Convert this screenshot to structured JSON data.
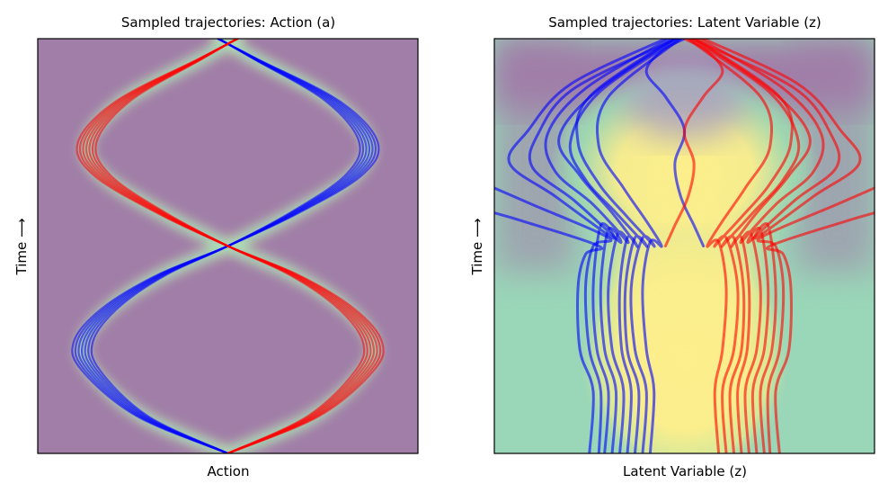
{
  "chart_data": [
    {
      "type": "line",
      "title": "Sampled trajectories: Action (a)",
      "xlabel": "Action",
      "ylabel": "Time ⟶",
      "xticks": [],
      "yticks": [],
      "xlim": [
        -1.0,
        1.0
      ],
      "ylim": [
        0.0,
        1.0
      ],
      "grid": false,
      "background": "density heatmap (mostly purple, bright only near trajectories)",
      "series": [
        {
          "color": "#0000ff",
          "x": [
            0.0,
            -0.45,
            -0.72,
            -0.76,
            -0.62,
            -0.35,
            0.0,
            0.35,
            0.66,
            0.74,
            0.55,
            0.15,
            -0.05
          ],
          "y": [
            0.0,
            0.09,
            0.2,
            0.27,
            0.35,
            0.43,
            0.5,
            0.58,
            0.67,
            0.75,
            0.85,
            0.95,
            1.0
          ]
        },
        {
          "color": "#ff0000",
          "x": [
            0.0,
            0.45,
            0.72,
            0.76,
            0.62,
            0.35,
            0.0,
            -0.35,
            -0.66,
            -0.74,
            -0.55,
            -0.15,
            0.05
          ],
          "y": [
            0.0,
            0.09,
            0.2,
            0.27,
            0.35,
            0.43,
            0.5,
            0.58,
            0.67,
            0.75,
            0.85,
            0.95,
            1.0
          ]
        }
      ]
    },
    {
      "type": "line",
      "title": "Sampled trajectories: Latent Variable (z)",
      "xlabel": "Latent Variable (z)",
      "ylabel": "Time ⟶",
      "xticks": [],
      "yticks": [],
      "xlim": [
        -1.0,
        1.0
      ],
      "ylim": [
        0.0,
        1.0
      ],
      "grid": false,
      "background": "density heatmap (yellow center band, green-teal sides, purple corners)",
      "series": [
        {
          "color": "#0000ff",
          "x": [
            -0.3,
            -0.28,
            -0.33,
            -0.34,
            -0.3,
            -0.25,
            -0.38,
            -0.55,
            -0.66,
            -0.47,
            -0.05
          ],
          "y": [
            0.0,
            0.15,
            0.25,
            0.4,
            0.52,
            0.5,
            0.58,
            0.67,
            0.76,
            0.87,
            1.0
          ]
        },
        {
          "color": "#0000ff",
          "x": [
            -0.34,
            -0.32,
            -0.38,
            -0.4,
            -0.35,
            -0.3,
            -0.48,
            -0.68,
            -0.72,
            -0.52,
            -0.08
          ],
          "y": [
            0.0,
            0.15,
            0.25,
            0.4,
            0.53,
            0.51,
            0.6,
            0.68,
            0.77,
            0.88,
            1.0
          ]
        },
        {
          "color": "#0000ff",
          "x": [
            -0.38,
            -0.36,
            -0.42,
            -0.44,
            -0.4,
            -0.34,
            -0.58,
            -0.8,
            -0.77,
            -0.58,
            -0.04
          ],
          "y": [
            0.0,
            0.15,
            0.25,
            0.4,
            0.54,
            0.51,
            0.61,
            0.69,
            0.77,
            0.88,
            1.0
          ]
        },
        {
          "color": "#0000ff",
          "x": [
            -0.42,
            -0.4,
            -0.46,
            -0.48,
            -0.44,
            -0.38,
            -0.68,
            -0.92,
            -0.82,
            -0.6,
            -0.1
          ],
          "y": [
            0.0,
            0.15,
            0.25,
            0.4,
            0.55,
            0.52,
            0.62,
            0.7,
            0.78,
            0.89,
            1.0
          ]
        },
        {
          "color": "#0000ff",
          "x": [
            -0.22,
            -0.2,
            -0.26,
            -0.28,
            -0.22,
            -0.16,
            -0.3,
            -0.45,
            -0.56,
            -0.5,
            -0.06
          ],
          "y": [
            0.0,
            0.15,
            0.25,
            0.4,
            0.52,
            0.5,
            0.57,
            0.65,
            0.75,
            0.86,
            1.0
          ]
        },
        {
          "color": "#0000ff",
          "x": [
            -0.26,
            -0.24,
            -0.3,
            -0.31,
            -0.26,
            -0.2,
            -0.36,
            -0.52,
            -0.6,
            -0.45,
            -0.03
          ],
          "y": [
            0.0,
            0.15,
            0.25,
            0.4,
            0.52,
            0.5,
            0.58,
            0.66,
            0.75,
            0.87,
            1.0
          ]
        },
        {
          "color": "#0000ff",
          "x": [
            -0.45,
            -0.44,
            -0.5,
            -0.52,
            -0.48,
            -0.4,
            -0.8,
            -1.0
          ],
          "y": [
            0.0,
            0.15,
            0.25,
            0.4,
            0.5,
            0.52,
            0.6,
            0.64
          ]
        },
        {
          "color": "#0000ff",
          "x": [
            -0.5,
            -0.48,
            -0.55,
            -0.56,
            -0.52,
            -0.45,
            -0.85,
            -1.0
          ],
          "y": [
            0.0,
            0.15,
            0.25,
            0.4,
            0.48,
            0.5,
            0.56,
            0.58
          ]
        },
        {
          "color": "#0000ff",
          "x": [
            -0.18,
            -0.16,
            -0.2,
            -0.22,
            -0.18,
            -0.12,
            -0.2,
            -0.32,
            -0.45,
            -0.4,
            -0.02
          ],
          "y": [
            0.0,
            0.15,
            0.25,
            0.4,
            0.51,
            0.5,
            0.56,
            0.64,
            0.74,
            0.86,
            1.0
          ]
        },
        {
          "color": "#0000ff",
          "x": [
            0.1,
            0.05,
            -0.02,
            -0.05,
            0.0,
            -0.1,
            -0.2,
            -0.12,
            0.0
          ],
          "y": [
            0.5,
            0.55,
            0.62,
            0.7,
            0.78,
            0.86,
            0.92,
            0.97,
            1.0
          ]
        },
        {
          "color": "#ff0000",
          "x": [
            0.3,
            0.28,
            0.33,
            0.34,
            0.3,
            0.25,
            0.38,
            0.55,
            0.66,
            0.47,
            0.05
          ],
          "y": [
            0.0,
            0.15,
            0.25,
            0.4,
            0.52,
            0.5,
            0.58,
            0.67,
            0.76,
            0.87,
            1.0
          ]
        },
        {
          "color": "#ff0000",
          "x": [
            0.34,
            0.32,
            0.38,
            0.4,
            0.35,
            0.3,
            0.48,
            0.68,
            0.72,
            0.52,
            0.08
          ],
          "y": [
            0.0,
            0.15,
            0.25,
            0.4,
            0.53,
            0.51,
            0.6,
            0.68,
            0.77,
            0.88,
            1.0
          ]
        },
        {
          "color": "#ff0000",
          "x": [
            0.38,
            0.36,
            0.42,
            0.44,
            0.4,
            0.34,
            0.58,
            0.8,
            0.77,
            0.58,
            0.04
          ],
          "y": [
            0.0,
            0.15,
            0.25,
            0.4,
            0.54,
            0.51,
            0.61,
            0.69,
            0.77,
            0.88,
            1.0
          ]
        },
        {
          "color": "#ff0000",
          "x": [
            0.42,
            0.4,
            0.46,
            0.48,
            0.44,
            0.38,
            0.68,
            0.92,
            0.82,
            0.6,
            0.1
          ],
          "y": [
            0.0,
            0.15,
            0.25,
            0.4,
            0.55,
            0.52,
            0.62,
            0.7,
            0.78,
            0.89,
            1.0
          ]
        },
        {
          "color": "#ff0000",
          "x": [
            0.22,
            0.2,
            0.26,
            0.28,
            0.22,
            0.16,
            0.3,
            0.45,
            0.56,
            0.5,
            0.06
          ],
          "y": [
            0.0,
            0.15,
            0.25,
            0.4,
            0.52,
            0.5,
            0.57,
            0.65,
            0.75,
            0.86,
            1.0
          ]
        },
        {
          "color": "#ff0000",
          "x": [
            0.26,
            0.24,
            0.3,
            0.31,
            0.26,
            0.2,
            0.36,
            0.52,
            0.6,
            0.45,
            0.03
          ],
          "y": [
            0.0,
            0.15,
            0.25,
            0.4,
            0.52,
            0.5,
            0.58,
            0.66,
            0.75,
            0.87,
            1.0
          ]
        },
        {
          "color": "#ff0000",
          "x": [
            0.45,
            0.44,
            0.5,
            0.52,
            0.48,
            0.4,
            0.8,
            1.0
          ],
          "y": [
            0.0,
            0.15,
            0.25,
            0.4,
            0.5,
            0.52,
            0.6,
            0.64
          ]
        },
        {
          "color": "#ff0000",
          "x": [
            0.5,
            0.48,
            0.55,
            0.56,
            0.52,
            0.45,
            0.85,
            1.0
          ],
          "y": [
            0.0,
            0.15,
            0.25,
            0.4,
            0.48,
            0.5,
            0.56,
            0.58
          ]
        },
        {
          "color": "#ff0000",
          "x": [
            0.18,
            0.16,
            0.2,
            0.22,
            0.18,
            0.12,
            0.2,
            0.32,
            0.45,
            0.4,
            0.02
          ],
          "y": [
            0.0,
            0.15,
            0.25,
            0.4,
            0.51,
            0.5,
            0.56,
            0.64,
            0.74,
            0.86,
            1.0
          ]
        },
        {
          "color": "#ff0000",
          "x": [
            -0.1,
            -0.05,
            0.02,
            0.05,
            0.0,
            0.1,
            0.2,
            0.12,
            0.0
          ],
          "y": [
            0.5,
            0.55,
            0.62,
            0.7,
            0.78,
            0.86,
            0.92,
            0.97,
            1.0
          ]
        }
      ]
    }
  ]
}
